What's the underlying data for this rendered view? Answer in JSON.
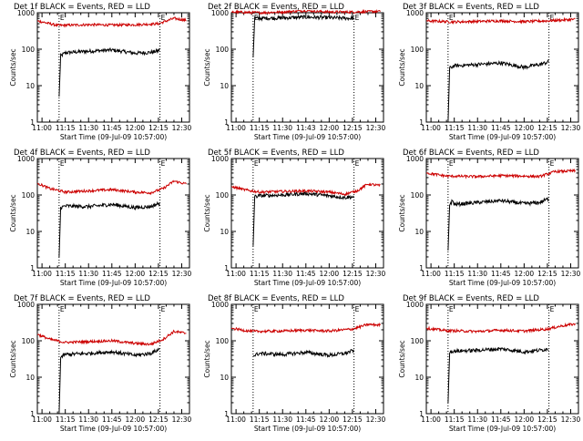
{
  "chart_data": [
    {
      "type": "line",
      "title": "Det 1f BLACK = Events, RED = LLD",
      "xlabel": "Start Time (09-Jul-09 10:57:00)",
      "ylabel": "Counts/sec",
      "yscale": "log",
      "ylim": [
        1,
        1000
      ],
      "xticks": [
        "11:00",
        "11:15",
        "11:30",
        "11:45",
        "12:00",
        "12:15",
        "12:30"
      ],
      "yticks": [
        "1",
        "10",
        "100",
        "1000"
      ],
      "flags": [
        "E",
        "E"
      ],
      "series": [
        {
          "name": "Events",
          "color": "#000000",
          "start": "11:11",
          "end": "12:16",
          "points": [
            [
              "11:11",
              5
            ],
            [
              "11:12",
              65
            ],
            [
              "11:15",
              80
            ],
            [
              "11:30",
              88
            ],
            [
              "11:45",
              95
            ],
            [
              "12:00",
              78
            ],
            [
              "12:10",
              82
            ],
            [
              "12:15",
              90
            ],
            [
              "12:16",
              110
            ]
          ]
        },
        {
          "name": "LLD",
          "color": "#cc0000",
          "start": "10:57",
          "end": "12:33",
          "points": [
            [
              "10:57",
              600
            ],
            [
              "11:10",
              450
            ],
            [
              "11:30",
              470
            ],
            [
              "11:45",
              460
            ],
            [
              "12:00",
              470
            ],
            [
              "12:15",
              500
            ],
            [
              "12:25",
              700
            ],
            [
              "12:33",
              620
            ]
          ]
        }
      ]
    },
    {
      "type": "line",
      "title": "Det 2f BLACK = Events, RED = LLD",
      "xlabel": "Start Time (09-Jul-09 10:57:00)",
      "ylabel": "Counts/sec",
      "yscale": "log",
      "ylim": [
        1,
        1000
      ],
      "xticks": [
        "11:00",
        "11:15",
        "11:30",
        "11:43",
        "12:00",
        "12:15",
        "12:30"
      ],
      "yticks": [
        "1",
        "10",
        "100",
        "1000"
      ],
      "flags": [
        "E",
        "E"
      ],
      "series": [
        {
          "name": "Events",
          "color": "#000000",
          "start": "11:11",
          "end": "12:16",
          "points": [
            [
              "11:11",
              60
            ],
            [
              "11:12",
              700
            ],
            [
              "11:30",
              720
            ],
            [
              "11:45",
              760
            ],
            [
              "12:00",
              730
            ],
            [
              "12:16",
              700
            ]
          ]
        },
        {
          "name": "LLD",
          "color": "#cc0000",
          "start": "10:57",
          "end": "12:33",
          "points": [
            [
              "10:57",
              1050
            ],
            [
              "11:15",
              1000
            ],
            [
              "11:30",
              1050
            ],
            [
              "11:45",
              1150
            ],
            [
              "12:00",
              1050
            ],
            [
              "12:15",
              1050
            ],
            [
              "12:33",
              1100
            ]
          ]
        }
      ]
    },
    {
      "type": "line",
      "title": "Det 3f BLACK = Events, RED = LLD",
      "xlabel": "Start Time (09-Jul-09 10:57:00)",
      "ylabel": "Counts/sec",
      "yscale": "log",
      "ylim": [
        1,
        1000
      ],
      "xticks": [
        "11:00",
        "11:15",
        "11:30",
        "11:45",
        "12:00",
        "12:15",
        "12:30"
      ],
      "yticks": [
        "1",
        "10",
        "100",
        "1000"
      ],
      "flags": [
        "E",
        "E"
      ],
      "series": [
        {
          "name": "Events",
          "color": "#000000",
          "start": "11:11",
          "end": "12:16",
          "points": [
            [
              "11:11",
              1
            ],
            [
              "11:12",
              30
            ],
            [
              "11:15",
              35
            ],
            [
              "11:30",
              38
            ],
            [
              "11:45",
              42
            ],
            [
              "12:00",
              32
            ],
            [
              "12:10",
              38
            ],
            [
              "12:16",
              45
            ]
          ]
        },
        {
          "name": "LLD",
          "color": "#cc0000",
          "start": "10:57",
          "end": "12:33",
          "points": [
            [
              "10:57",
              600
            ],
            [
              "11:15",
              560
            ],
            [
              "11:30",
              580
            ],
            [
              "11:45",
              600
            ],
            [
              "12:00",
              570
            ],
            [
              "12:15",
              600
            ],
            [
              "12:33",
              660
            ]
          ]
        }
      ]
    },
    {
      "type": "line",
      "title": "Det 4f BLACK = Events, RED = LLD",
      "xlabel": "Start Time (09-Jul-09 10:57:00)",
      "ylabel": "Counts/sec",
      "yscale": "log",
      "ylim": [
        1,
        1000
      ],
      "xticks": [
        "11:00",
        "11:15",
        "11:30",
        "11:45",
        "12:00",
        "12:15",
        "12:30"
      ],
      "yticks": [
        "1",
        "10",
        "100",
        "1000"
      ],
      "flags": [
        "E",
        "E"
      ],
      "series": [
        {
          "name": "Events",
          "color": "#000000",
          "start": "11:11",
          "end": "12:16",
          "points": [
            [
              "11:11",
              2
            ],
            [
              "11:12",
              45
            ],
            [
              "11:15",
              50
            ],
            [
              "11:30",
              48
            ],
            [
              "11:45",
              55
            ],
            [
              "12:00",
              45
            ],
            [
              "12:10",
              48
            ],
            [
              "12:16",
              60
            ]
          ]
        },
        {
          "name": "LLD",
          "color": "#cc0000",
          "start": "10:57",
          "end": "12:33",
          "points": [
            [
              "10:57",
              210
            ],
            [
              "11:05",
              150
            ],
            [
              "11:15",
              120
            ],
            [
              "11:30",
              130
            ],
            [
              "11:45",
              140
            ],
            [
              "12:00",
              120
            ],
            [
              "12:10",
              115
            ],
            [
              "12:18",
              150
            ],
            [
              "12:25",
              240
            ],
            [
              "12:33",
              200
            ]
          ]
        }
      ]
    },
    {
      "type": "line",
      "title": "Det 5f BLACK = Events, RED = LLD",
      "xlabel": "Start Time (09-Jul-09 10:57:00)",
      "ylabel": "Counts/sec",
      "yscale": "log",
      "ylim": [
        1,
        1000
      ],
      "xticks": [
        "11:00",
        "11:15",
        "11:30",
        "11:45",
        "12:00",
        "12:15",
        "12:30"
      ],
      "yticks": [
        "1",
        "10",
        "100",
        "1000"
      ],
      "flags": [
        "E",
        "E"
      ],
      "series": [
        {
          "name": "Events",
          "color": "#000000",
          "start": "11:11",
          "end": "12:16",
          "points": [
            [
              "11:11",
              4
            ],
            [
              "11:12",
              90
            ],
            [
              "11:15",
              95
            ],
            [
              "11:30",
              100
            ],
            [
              "11:45",
              110
            ],
            [
              "12:00",
              95
            ],
            [
              "12:10",
              85
            ],
            [
              "12:16",
              90
            ]
          ]
        },
        {
          "name": "LLD",
          "color": "#cc0000",
          "start": "10:57",
          "end": "12:33",
          "points": [
            [
              "10:57",
              170
            ],
            [
              "11:05",
              140
            ],
            [
              "11:15",
              120
            ],
            [
              "11:30",
              125
            ],
            [
              "11:45",
              130
            ],
            [
              "12:00",
              120
            ],
            [
              "12:10",
              105
            ],
            [
              "12:18",
              130
            ],
            [
              "12:25",
              200
            ],
            [
              "12:33",
              180
            ]
          ]
        }
      ]
    },
    {
      "type": "line",
      "title": "Det 6f BLACK = Events, RED = LLD",
      "xlabel": "Start Time (09-Jul-09 10:57:00)",
      "ylabel": "Counts/sec",
      "yscale": "log",
      "ylim": [
        1,
        1000
      ],
      "xticks": [
        "11:00",
        "11:15",
        "11:30",
        "11:45",
        "12:00",
        "12:15",
        "12:30"
      ],
      "yticks": [
        "1",
        "10",
        "100",
        "1000"
      ],
      "flags": [
        "E",
        "E"
      ],
      "series": [
        {
          "name": "Events",
          "color": "#000000",
          "start": "11:11",
          "end": "12:16",
          "points": [
            [
              "11:11",
              3
            ],
            [
              "11:12",
              55
            ],
            [
              "11:14",
              70
            ],
            [
              "11:15",
              55
            ],
            [
              "11:30",
              62
            ],
            [
              "11:45",
              70
            ],
            [
              "12:00",
              58
            ],
            [
              "12:10",
              62
            ],
            [
              "12:16",
              80
            ]
          ]
        },
        {
          "name": "LLD",
          "color": "#cc0000",
          "start": "10:57",
          "end": "12:33",
          "points": [
            [
              "10:57",
              400
            ],
            [
              "11:10",
              330
            ],
            [
              "11:30",
              320
            ],
            [
              "11:45",
              340
            ],
            [
              "12:00",
              330
            ],
            [
              "12:10",
              320
            ],
            [
              "12:20",
              440
            ],
            [
              "12:33",
              460
            ]
          ]
        }
      ]
    },
    {
      "type": "line",
      "title": "Det 7f BLACK = Events, RED = LLD",
      "xlabel": "Start Time (09-Jul-09 10:57:00)",
      "ylabel": "Counts/sec",
      "yscale": "log",
      "ylim": [
        1,
        1000
      ],
      "xticks": [
        "11:00",
        "11:15",
        "11:30",
        "11:45",
        "12:00",
        "12:15",
        "12:30"
      ],
      "yticks": [
        "1",
        "10",
        "100",
        "1000"
      ],
      "flags": [
        "E",
        "E"
      ],
      "series": [
        {
          "name": "Events",
          "color": "#000000",
          "start": "11:11",
          "end": "12:16",
          "points": [
            [
              "11:11",
              1
            ],
            [
              "11:12",
              35
            ],
            [
              "11:15",
              42
            ],
            [
              "11:30",
              45
            ],
            [
              "11:45",
              50
            ],
            [
              "12:00",
              40
            ],
            [
              "12:10",
              45
            ],
            [
              "12:16",
              60
            ]
          ]
        },
        {
          "name": "LLD",
          "color": "#cc0000",
          "start": "10:57",
          "end": "12:33",
          "points": [
            [
              "10:57",
              150
            ],
            [
              "11:05",
              110
            ],
            [
              "11:15",
              90
            ],
            [
              "11:30",
              95
            ],
            [
              "11:45",
              100
            ],
            [
              "12:00",
              85
            ],
            [
              "12:10",
              80
            ],
            [
              "12:18",
              110
            ],
            [
              "12:25",
              180
            ],
            [
              "12:33",
              160
            ]
          ]
        }
      ]
    },
    {
      "type": "line",
      "title": "Det 8f BLACK = Events, RED = LLD",
      "xlabel": "Start Time (09-Jul-09 10:57:00)",
      "ylabel": "Counts/sec",
      "yscale": "log",
      "ylim": [
        1,
        1000
      ],
      "xticks": [
        "11:00",
        "11:15",
        "11:30",
        "11:45",
        "12:00",
        "12:15",
        "12:30"
      ],
      "yticks": [
        "1",
        "10",
        "100",
        "1000"
      ],
      "flags": [
        "E",
        "E"
      ],
      "series": [
        {
          "name": "Events",
          "color": "#000000",
          "start": "11:11",
          "end": "12:16",
          "points": [
            [
              "11:11",
              38
            ],
            [
              "11:15",
              45
            ],
            [
              "11:30",
              42
            ],
            [
              "11:45",
              48
            ],
            [
              "12:00",
              40
            ],
            [
              "12:10",
              45
            ],
            [
              "12:16",
              55
            ]
          ]
        },
        {
          "name": "LLD",
          "color": "#cc0000",
          "start": "10:57",
          "end": "12:33",
          "points": [
            [
              "10:57",
              220
            ],
            [
              "11:10",
              180
            ],
            [
              "11:30",
              185
            ],
            [
              "11:45",
              195
            ],
            [
              "12:00",
              185
            ],
            [
              "12:15",
              210
            ],
            [
              "12:25",
              280
            ],
            [
              "12:33",
              270
            ]
          ]
        }
      ]
    },
    {
      "type": "line",
      "title": "Det 9f BLACK = Events, RED = LLD",
      "xlabel": "Start Time (09-Jul-09 10:57:00)",
      "ylabel": "Counts/sec",
      "yscale": "log",
      "ylim": [
        1,
        1000
      ],
      "xticks": [
        "11:00",
        "11:15",
        "11:30",
        "11:45",
        "12:00",
        "12:15",
        "12:30"
      ],
      "yticks": [
        "1",
        "10",
        "100",
        "1000"
      ],
      "flags": [
        "E",
        "E"
      ],
      "series": [
        {
          "name": "Events",
          "color": "#000000",
          "start": "11:11",
          "end": "12:16",
          "points": [
            [
              "11:11",
              2
            ],
            [
              "11:12",
              50
            ],
            [
              "11:15",
              52
            ],
            [
              "11:30",
              55
            ],
            [
              "11:45",
              60
            ],
            [
              "12:00",
              50
            ],
            [
              "12:10",
              55
            ],
            [
              "12:16",
              60
            ]
          ]
        },
        {
          "name": "LLD",
          "color": "#cc0000",
          "start": "10:57",
          "end": "12:33",
          "points": [
            [
              "10:57",
              220
            ],
            [
              "11:10",
              190
            ],
            [
              "11:30",
              180
            ],
            [
              "11:45",
              195
            ],
            [
              "12:00",
              185
            ],
            [
              "12:15",
              210
            ],
            [
              "12:25",
              260
            ],
            [
              "12:33",
              290
            ]
          ]
        }
      ]
    }
  ]
}
